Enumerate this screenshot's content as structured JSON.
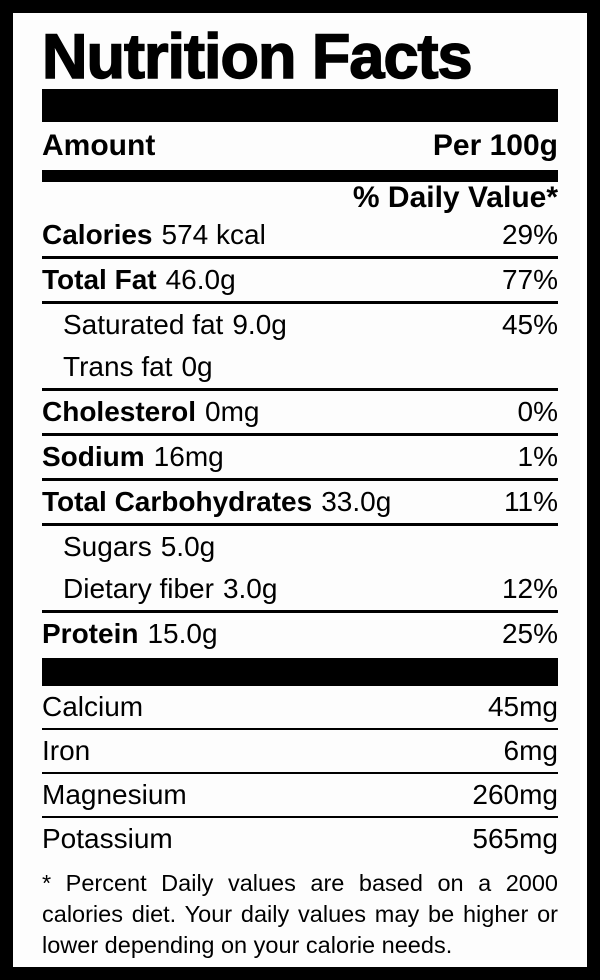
{
  "title": "Nutrition Facts",
  "header": {
    "amount": "Amount",
    "per": "Per 100g"
  },
  "daily_value_header": "% Daily Value*",
  "nutrients": [
    {
      "label": "Calories",
      "value": "574 kcal",
      "dv": "29%"
    },
    {
      "label": "Total Fat",
      "value": "46.0g",
      "dv": "77%"
    },
    {
      "label": "Saturated fat",
      "value": "9.0g",
      "dv": "45%"
    },
    {
      "label": "Trans fat",
      "value": "0g",
      "dv": ""
    },
    {
      "label": "Cholesterol",
      "value": "0mg",
      "dv": "0%"
    },
    {
      "label": "Sodium",
      "value": "16mg",
      "dv": "1%"
    },
    {
      "label": "Total Carbohydrates",
      "value": "33.0g",
      "dv": "11%"
    },
    {
      "label": "Sugars",
      "value": "5.0g",
      "dv": ""
    },
    {
      "label": "Dietary fiber",
      "value": "3.0g",
      "dv": "12%"
    },
    {
      "label": "Protein",
      "value": "15.0g",
      "dv": "25%"
    }
  ],
  "minerals": [
    {
      "label": "Calcium",
      "value": "45mg"
    },
    {
      "label": "Iron",
      "value": "6mg"
    },
    {
      "label": "Magnesium",
      "value": "260mg"
    },
    {
      "label": "Potassium",
      "value": "565mg"
    }
  ],
  "footnote": "* Percent Daily values are based on a 2000 calories diet. Your daily values may be higher or lower depending on your calorie needs.",
  "colors": {
    "ink": "#000000",
    "paper": "#fdfdfd"
  }
}
